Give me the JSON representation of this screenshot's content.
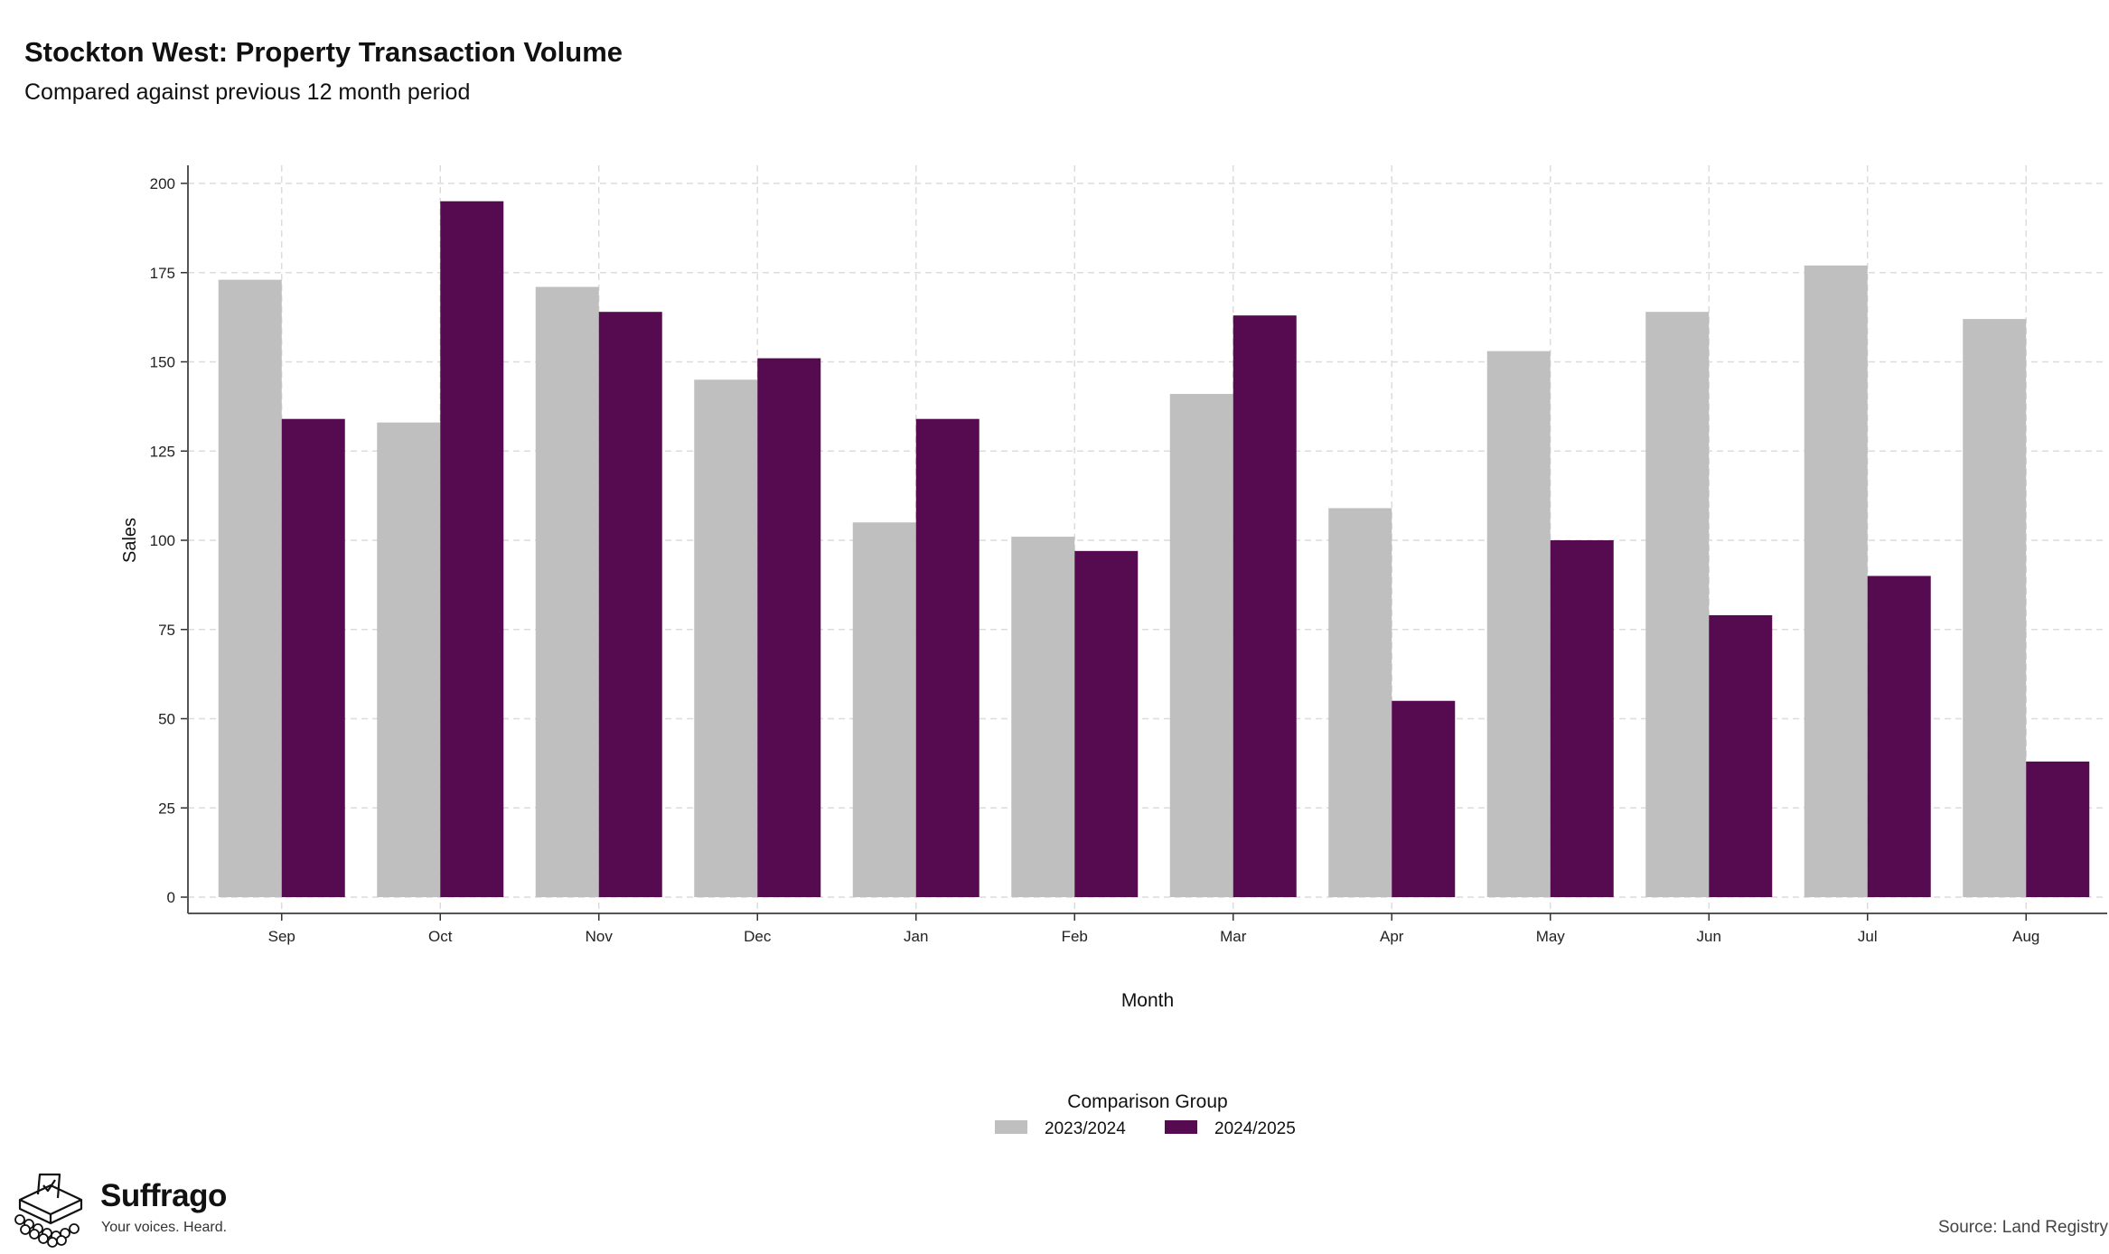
{
  "chart_data": {
    "type": "bar",
    "title": "Stockton West: Property Transaction Volume",
    "subtitle": "Compared against previous 12 month period",
    "xlabel": "Month",
    "ylabel": "Sales",
    "categories": [
      "Sep",
      "Oct",
      "Nov",
      "Dec",
      "Jan",
      "Feb",
      "Mar",
      "Apr",
      "May",
      "Jun",
      "Jul",
      "Aug"
    ],
    "series": [
      {
        "name": "2023/2024",
        "color": "#bfbfbf",
        "values": [
          173,
          133,
          171,
          145,
          105,
          101,
          141,
          109,
          153,
          164,
          177,
          162
        ]
      },
      {
        "name": "2024/2025",
        "color": "#560b50",
        "values": [
          134,
          195,
          164,
          151,
          134,
          97,
          163,
          55,
          100,
          79,
          90,
          38
        ]
      }
    ],
    "ylim": [
      0,
      200
    ],
    "yticks": [
      0,
      25,
      50,
      75,
      100,
      125,
      150,
      175,
      200
    ],
    "grid": true,
    "legend": {
      "title": "Comparison Group",
      "position": "bottom"
    }
  },
  "branding": {
    "name": "Suffrago",
    "tagline": "Your voices. Heard."
  },
  "source": "Source: Land Registry"
}
